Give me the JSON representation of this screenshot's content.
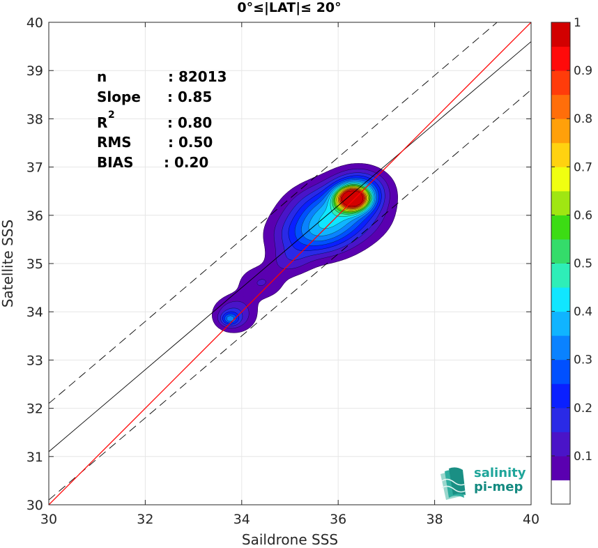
{
  "chart_data": {
    "type": "contour",
    "title": "0°≤|LAT|≤ 20°",
    "xlabel": "Saildrone SSS",
    "ylabel": "Satellite SSS",
    "xlim": [
      30,
      40
    ],
    "ylim": [
      30,
      40
    ],
    "xticks": [
      "30",
      "32",
      "34",
      "36",
      "38",
      "40"
    ],
    "yticks": [
      "30",
      "31",
      "32",
      "33",
      "34",
      "35",
      "36",
      "37",
      "38",
      "39",
      "40"
    ],
    "grid": true,
    "stats": [
      {
        "label": "n",
        "value": ": 82013"
      },
      {
        "label": "Slope",
        "value": ": 0.85"
      },
      {
        "label": "R",
        "sup": "2",
        "value": ": 0.80"
      },
      {
        "label": "RMS",
        "value": ": 0.50"
      },
      {
        "label": "BIAS",
        "value": ": 0.20"
      }
    ],
    "lines": {
      "identity": {
        "slope": 1.0,
        "intercept": 0.0,
        "color": "#ff0000"
      },
      "fit": {
        "slope": 0.85,
        "intercept": 5.6,
        "color": "#000000"
      },
      "bounds_offset": 1.0
    },
    "contour_levels": [
      0.05,
      0.1,
      0.15,
      0.2,
      0.25,
      0.3,
      0.35,
      0.4,
      0.45,
      0.5,
      0.55,
      0.6,
      0.65,
      0.7,
      0.75,
      0.8,
      0.85,
      0.9,
      0.95
    ],
    "density_blobs": [
      {
        "x": 36.3,
        "y": 36.35,
        "sx": 0.22,
        "sy": 0.16,
        "peak": 0.97
      },
      {
        "x": 35.95,
        "y": 36.05,
        "sx": 0.6,
        "sy": 0.38,
        "peak": 0.36
      },
      {
        "x": 35.45,
        "y": 35.55,
        "sx": 0.55,
        "sy": 0.32,
        "peak": 0.22
      },
      {
        "x": 36.45,
        "y": 36.55,
        "sx": 0.38,
        "sy": 0.28,
        "peak": 0.25
      },
      {
        "x": 35.0,
        "y": 35.05,
        "sx": 0.3,
        "sy": 0.22,
        "peak": 0.09
      },
      {
        "x": 34.4,
        "y": 34.6,
        "sx": 0.35,
        "sy": 0.25,
        "peak": 0.1
      },
      {
        "x": 33.85,
        "y": 33.95,
        "sx": 0.3,
        "sy": 0.25,
        "peak": 0.16
      },
      {
        "x": 33.75,
        "y": 33.85,
        "sx": 0.12,
        "sy": 0.09,
        "peak": 0.2
      }
    ],
    "colorbar": {
      "range": [
        0,
        1
      ],
      "ticks": [
        "0.1",
        "0.2",
        "0.3",
        "0.4",
        "0.5",
        "0.6",
        "0.7",
        "0.8",
        "0.9",
        "1"
      ],
      "colors": [
        "#ffffff",
        "#5a00b0",
        "#4a14c8",
        "#2a2ae6",
        "#0a20ff",
        "#0050ff",
        "#0a82ff",
        "#10b4ff",
        "#10e6ff",
        "#2eeeb8",
        "#34dc6a",
        "#3cdc14",
        "#a0e612",
        "#f0ff10",
        "#ffd210",
        "#ffa00a",
        "#ff6e0a",
        "#ff3c0a",
        "#ff0a0a",
        "#d20000",
        "#8c0000"
      ]
    },
    "logo": {
      "line1": "salinity",
      "line2": "pi-mep"
    }
  }
}
